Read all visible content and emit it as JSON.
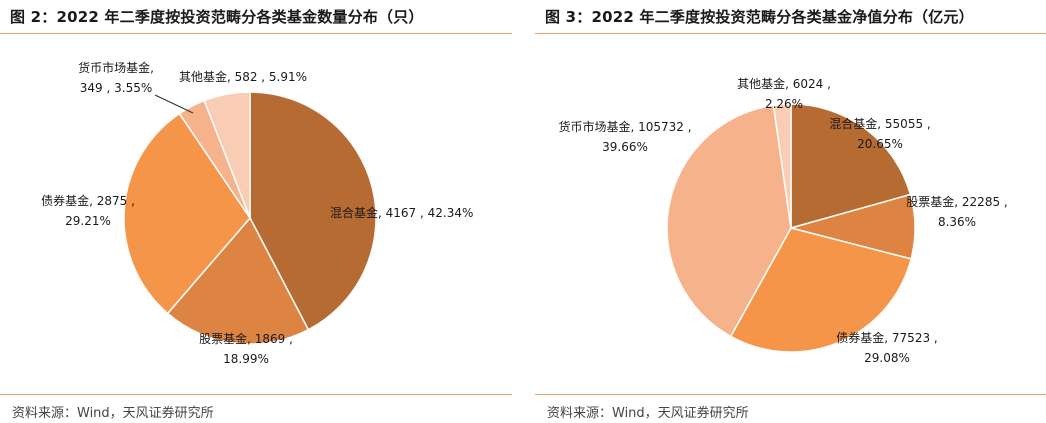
{
  "charts": [
    {
      "id": "left",
      "title": "图 2：2022 年二季度按投资范畴分各类基金数量分布（只）",
      "source": "资料来源：Wind，天风证券研究所",
      "chart_data": {
        "type": "pie",
        "slices": [
          {
            "name": "混合基金",
            "value": 4167,
            "percent": "42.34%",
            "color": "#b56b32",
            "label_lines": [
              "混合基金, 4167 , 42.34%"
            ]
          },
          {
            "name": "股票基金",
            "value": 1869,
            "percent": "18.99%",
            "color": "#dd8442",
            "label_lines": [
              "股票基金, 1869 ,",
              "18.99%"
            ]
          },
          {
            "name": "债券基金",
            "value": 2875,
            "percent": "29.21%",
            "color": "#f5954a",
            "label_lines": [
              "债券基金, 2875 ,",
              "29.21%"
            ]
          },
          {
            "name": "货币市场基金",
            "value": 349,
            "percent": "3.55%",
            "color": "#f6b28a",
            "label_lines": [
              "货币市场基金,",
              "349 , 3.55%"
            ]
          },
          {
            "name": "其他基金",
            "value": 582,
            "percent": "5.91%",
            "color": "#f9cdb4",
            "label_lines": [
              "其他基金, 582 , 5.91%"
            ]
          }
        ]
      }
    },
    {
      "id": "right",
      "title": "图 3：2022 年二季度按投资范畴分各类基金净值分布（亿元）",
      "source": "资料来源：Wind，天风证券研究所",
      "chart_data": {
        "type": "pie",
        "slices": [
          {
            "name": "混合基金",
            "value": 55055,
            "percent": "20.65%",
            "color": "#b56b32",
            "label_lines": [
              "混合基金, 55055 ,",
              "20.65%"
            ]
          },
          {
            "name": "股票基金",
            "value": 22285,
            "percent": "8.36%",
            "color": "#dd8442",
            "label_lines": [
              "股票基金, 22285 ,",
              "8.36%"
            ]
          },
          {
            "name": "债券基金",
            "value": 77523,
            "percent": "29.08%",
            "color": "#f5954a",
            "label_lines": [
              "债券基金, 77523 ,",
              "29.08%"
            ]
          },
          {
            "name": "货币市场基金",
            "value": 105732,
            "percent": "39.66%",
            "color": "#f6b28a",
            "label_lines": [
              "货币市场基金, 105732 ,",
              "39.66%"
            ]
          },
          {
            "name": "其他基金",
            "value": 6024,
            "percent": "2.26%",
            "color": "#f9cdb4",
            "label_lines": [
              "其他基金, 6024 ,",
              "2.26%"
            ]
          }
        ]
      }
    }
  ]
}
